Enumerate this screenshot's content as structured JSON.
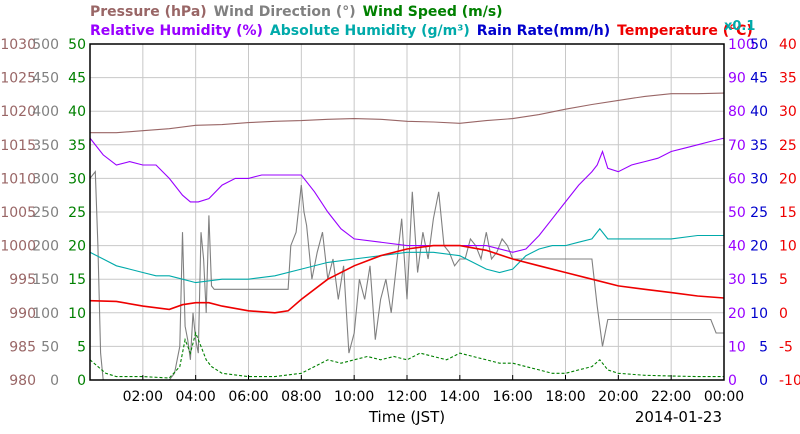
{
  "header": {
    "line1": [
      {
        "text": "Pressure (hPa)",
        "color": "#996666"
      },
      {
        "text": "Wind Direction (°)",
        "color": "#808080"
      },
      {
        "text": "Wind Speed (m/s)",
        "color": "#008000"
      }
    ],
    "line2": [
      {
        "text": "Relative Humidity (%)",
        "color": "#9900FF"
      },
      {
        "text": "Absolute Humidity (g/m³)",
        "color": "#00AAAA"
      },
      {
        "text": "Rain Rate(mm/h)",
        "color": "#0000CC"
      },
      {
        "text": "Temperature (°C)",
        "color": "#EE0000"
      }
    ],
    "abs_multiplier": "x0.1"
  },
  "footer": {
    "xlabel": "Time (JST)",
    "date": "2014-01-23"
  },
  "chart_data": {
    "type": "line",
    "xlabel": "Time (JST)",
    "xlim": [
      0,
      24
    ],
    "x_ticks": [
      2,
      4,
      6,
      8,
      10,
      12,
      14,
      16,
      18,
      20,
      22,
      24
    ],
    "x_tick_labels": [
      "02:00",
      "04:00",
      "06:00",
      "08:00",
      "10:00",
      "12:00",
      "14:00",
      "16:00",
      "18:00",
      "20:00",
      "22:00",
      "00:00"
    ],
    "grid": true,
    "axes": {
      "pressure": {
        "label": "Pressure (hPa)",
        "range": [
          980,
          1030
        ],
        "ticks": [
          "1030",
          "1025",
          "1020",
          "1015",
          "1010",
          "1005",
          "1000",
          "995",
          "990",
          "985",
          "980"
        ],
        "color": "#996666"
      },
      "wind_dir": {
        "label": "Wind Direction (°)",
        "range": [
          0,
          500
        ],
        "ticks": [
          "500",
          "450",
          "400",
          "350",
          "300",
          "250",
          "200",
          "150",
          "100",
          "50",
          "0"
        ],
        "color": "#808080"
      },
      "wind_speed": {
        "label": "Wind Speed (m/s)",
        "range": [
          0,
          50
        ],
        "ticks": [
          "50",
          "45",
          "40",
          "35",
          "30",
          "25",
          "20",
          "15",
          "10",
          "5",
          "0"
        ],
        "color": "#008000"
      },
      "rh": {
        "label": "Relative Humidity (%)",
        "range": [
          0,
          100
        ],
        "ticks": [
          "100",
          "90",
          "80",
          "70",
          "60",
          "50",
          "40",
          "30",
          "20",
          "10",
          "0"
        ],
        "color": "#9900FF"
      },
      "rain": {
        "label": "Rain Rate(mm/h)",
        "range": [
          0,
          50
        ],
        "ticks": [
          "50",
          "45",
          "40",
          "35",
          "30",
          "25",
          "20",
          "15",
          "10",
          "5",
          "0"
        ],
        "color": "#0000CC"
      },
      "temp": {
        "label": "Temperature (°C)",
        "range": [
          -10,
          40
        ],
        "ticks": [
          "40",
          "35",
          "30",
          "25",
          "20",
          "15",
          "10",
          "5",
          "0",
          "-5",
          "-10"
        ],
        "color": "#EE0000"
      }
    },
    "series": [
      {
        "name": "Pressure (hPa)",
        "axis": "pressure",
        "color": "#996666",
        "x": [
          0,
          1,
          2,
          3,
          4,
          5,
          6,
          7,
          8,
          9,
          10,
          11,
          12,
          13,
          14,
          15,
          16,
          17,
          18,
          19,
          20,
          21,
          22,
          23,
          24
        ],
        "y": [
          1016.8,
          1016.8,
          1017.1,
          1017.4,
          1017.9,
          1018.0,
          1018.3,
          1018.5,
          1018.6,
          1018.8,
          1018.9,
          1018.8,
          1018.5,
          1018.4,
          1018.2,
          1018.6,
          1018.9,
          1019.5,
          1020.3,
          1021.0,
          1021.6,
          1022.2,
          1022.6,
          1022.6,
          1022.7
        ]
      },
      {
        "name": "Wind Direction (°)",
        "axis": "wind_dir",
        "color": "#808080",
        "x": [
          0,
          0.2,
          0.3,
          0.4,
          0.5,
          1,
          1.5,
          2,
          2.5,
          3,
          3.2,
          3.4,
          3.5,
          3.6,
          3.7,
          3.8,
          3.9,
          4.0,
          4.1,
          4.2,
          4.3,
          4.4,
          4.5,
          4.6,
          4.7,
          4.8,
          5,
          6,
          7,
          7.5,
          7.6,
          7.8,
          8.0,
          8.1,
          8.2,
          8.4,
          8.6,
          8.8,
          9.0,
          9.2,
          9.4,
          9.6,
          9.8,
          10.0,
          10.2,
          10.4,
          10.6,
          10.8,
          11.0,
          11.2,
          11.4,
          11.6,
          11.8,
          12.0,
          12.2,
          12.4,
          12.6,
          12.8,
          13.0,
          13.2,
          13.4,
          13.6,
          13.8,
          14.0,
          14.2,
          14.4,
          14.6,
          14.8,
          15.0,
          15.2,
          15.4,
          15.6,
          15.8,
          16.0,
          16.5,
          17,
          17.5,
          18,
          18.5,
          19.0,
          19.2,
          19.4,
          19.6,
          19.8,
          20.0,
          21,
          22,
          23,
          23.5,
          23.7,
          24
        ],
        "y": [
          300,
          310,
          200,
          40,
          0,
          0,
          0,
          0,
          0,
          0,
          10,
          50,
          220,
          80,
          60,
          30,
          100,
          60,
          40,
          220,
          180,
          100,
          245,
          140,
          135,
          135,
          135,
          135,
          135,
          135,
          200,
          220,
          290,
          250,
          230,
          150,
          190,
          220,
          150,
          180,
          120,
          170,
          40,
          70,
          150,
          120,
          170,
          60,
          120,
          150,
          100,
          170,
          240,
          120,
          280,
          160,
          220,
          180,
          240,
          280,
          200,
          190,
          170,
          180,
          180,
          210,
          200,
          180,
          220,
          180,
          190,
          210,
          200,
          180,
          180,
          180,
          180,
          180,
          180,
          180,
          110,
          50,
          90,
          90,
          90,
          90,
          90,
          90,
          90,
          70,
          70
        ]
      },
      {
        "name": "Wind Speed (m/s)",
        "axis": "wind_speed",
        "color": "#008000",
        "x": [
          0,
          0.3,
          0.6,
          1,
          2,
          3,
          3.4,
          3.6,
          3.8,
          4.0,
          4.2,
          4.4,
          4.6,
          5,
          6,
          7,
          8,
          8.5,
          9,
          9.5,
          10,
          10.5,
          11,
          11.5,
          12,
          12.5,
          13,
          13.5,
          14,
          14.5,
          15,
          15.5,
          16,
          16.5,
          17,
          17.5,
          18,
          18.5,
          19,
          19.3,
          19.6,
          20,
          21,
          22,
          23,
          24
        ],
        "y": [
          3,
          2,
          1,
          0.5,
          0.5,
          0.3,
          2,
          6,
          4,
          7,
          5,
          3,
          2,
          1,
          0.5,
          0.5,
          1,
          2,
          3,
          2.5,
          3,
          3.5,
          3,
          3.5,
          3,
          4,
          3.5,
          3,
          4,
          3.5,
          3,
          2.5,
          2.5,
          2,
          1.5,
          1,
          1,
          1.5,
          2,
          3,
          1.5,
          1,
          0.7,
          0.6,
          0.5,
          0.5
        ]
      },
      {
        "name": "Relative Humidity (%)",
        "axis": "rh",
        "color": "#9900FF",
        "x": [
          0,
          0.5,
          1,
          1.5,
          2,
          2.5,
          3,
          3.5,
          3.8,
          4.1,
          4.5,
          5,
          5.5,
          6,
          6.5,
          7,
          7.5,
          8,
          8.5,
          9,
          9.5,
          10,
          11,
          12,
          13,
          14,
          15,
          16,
          16.5,
          17,
          17.5,
          18,
          18.5,
          19,
          19.2,
          19.4,
          19.6,
          20,
          20.5,
          21,
          21.5,
          22,
          22.5,
          23,
          23.5,
          24
        ],
        "y": [
          72,
          67,
          64,
          65,
          64,
          64,
          60,
          55,
          53,
          53,
          54,
          58,
          60,
          60,
          61,
          61,
          61,
          61,
          56,
          50,
          45,
          42,
          41,
          40,
          40,
          40,
          40,
          38,
          39,
          43,
          48,
          53,
          58,
          62,
          64,
          68,
          63,
          62,
          64,
          65,
          66,
          68,
          69,
          70,
          71,
          72
        ]
      },
      {
        "name": "Absolute Humidity (g/m³)",
        "axis": "rh",
        "color": "#00AAAA",
        "x": [
          0,
          0.5,
          1,
          1.5,
          2,
          2.5,
          3,
          3.5,
          4,
          5,
          6,
          7,
          8,
          9,
          10,
          11,
          12,
          13,
          14,
          14.5,
          15,
          15.5,
          16,
          16.5,
          17,
          17.5,
          18,
          18.5,
          19,
          19.3,
          19.6,
          20,
          21,
          22,
          23,
          24
        ],
        "y": [
          38,
          36,
          34,
          33,
          32,
          31,
          31,
          30,
          29,
          30,
          30,
          31,
          33,
          35,
          36,
          37,
          38,
          38,
          37,
          35,
          33,
          32,
          33,
          37,
          39,
          40,
          40,
          41,
          42,
          45,
          42,
          42,
          42,
          42,
          43,
          43
        ]
      },
      {
        "name": "Rain Rate(mm/h)",
        "axis": "rain",
        "color": "#0000CC",
        "x": [
          0,
          24
        ],
        "y": [
          0,
          0
        ]
      },
      {
        "name": "Temperature (°C)",
        "axis": "temp",
        "color": "#EE0000",
        "x": [
          0,
          1,
          2,
          3,
          3.5,
          4,
          4.5,
          5,
          6,
          7,
          7.5,
          8,
          9,
          10,
          11,
          12,
          13,
          14,
          15,
          16,
          17,
          18,
          19,
          20,
          21,
          22,
          23,
          24
        ],
        "y": [
          1.8,
          1.7,
          1.0,
          0.5,
          1.2,
          1.5,
          1.5,
          1.0,
          0.3,
          0.0,
          0.3,
          2.0,
          5.0,
          7.0,
          8.5,
          9.5,
          10.0,
          10.0,
          9.3,
          8.0,
          7.0,
          6.0,
          5.0,
          4.0,
          3.5,
          3.0,
          2.5,
          2.2
        ]
      }
    ]
  }
}
